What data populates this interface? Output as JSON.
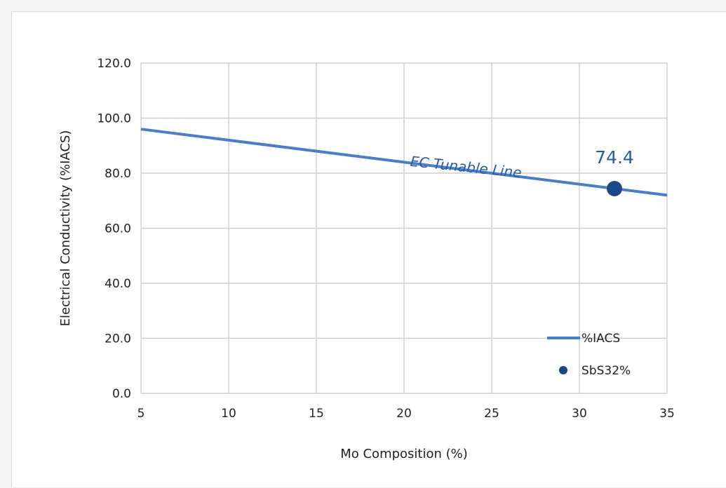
{
  "chart_data": {
    "type": "line",
    "title": "",
    "xlabel": "Mo Composition (%)",
    "ylabel": "Electrical Conductivity  (%IACS)",
    "xlim": [
      5,
      35
    ],
    "ylim": [
      0,
      120
    ],
    "x_ticks": [
      "5",
      "10",
      "15",
      "20",
      "25",
      "30",
      "35"
    ],
    "y_ticks": [
      "0.0",
      "20.0",
      "40.0",
      "60.0",
      "80.0",
      "100.0",
      "120.0"
    ],
    "grid": true,
    "legend_position": "bottom-right",
    "series": [
      {
        "name": "%IACS",
        "kind": "line",
        "color": "#4a7fc7",
        "x": [
          5,
          35
        ],
        "y": [
          96,
          72
        ]
      },
      {
        "name": "SbS32%",
        "kind": "scatter",
        "color": "#1d4786",
        "x": [
          32
        ],
        "y": [
          74.4
        ]
      }
    ],
    "annotations": [
      {
        "text": "EC Tunable Line",
        "x": 23.5,
        "y": 80.5,
        "color": "#2a5ba8"
      },
      {
        "text": "74.4",
        "x": 32,
        "y": 74.4,
        "color": "#2a5ba8"
      }
    ]
  }
}
